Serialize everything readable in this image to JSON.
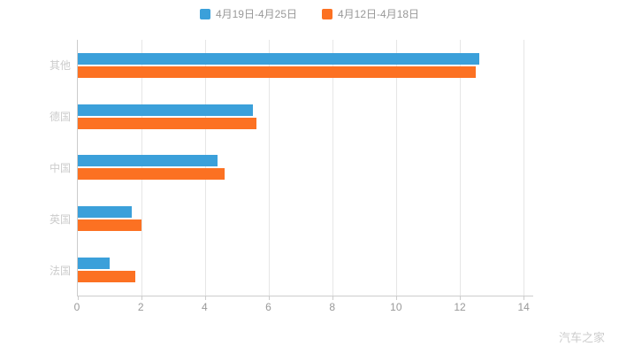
{
  "legend": {
    "series1_label": "4月19日-4月25日",
    "series2_label": "4月12日-4月18日"
  },
  "watermark": "汽车之家",
  "colors": {
    "series1": "#3ba0da",
    "series2": "#fc7122",
    "grid": "#e6e6e6",
    "axis": "#cccccc",
    "tick_text": "#999999",
    "category_text": "#cccccc",
    "watermark_text": "#cccccc",
    "background": "#ffffff"
  },
  "chart_data": {
    "type": "bar",
    "orientation": "horizontal",
    "title": "",
    "xlabel": "",
    "ylabel": "",
    "grid": true,
    "legend_position": "top",
    "categories": [
      "其他",
      "德国",
      "中国",
      "英国",
      "法国"
    ],
    "series": [
      {
        "name": "4月19日-4月25日",
        "color": "#3ba0da",
        "values": [
          12.6,
          5.5,
          4.4,
          1.7,
          1.0
        ]
      },
      {
        "name": "4月12日-4月18日",
        "color": "#fc7122",
        "values": [
          12.5,
          5.6,
          4.6,
          2.0,
          1.8
        ]
      }
    ],
    "x_ticks": [
      0,
      2,
      4,
      6,
      8,
      10,
      12,
      14
    ],
    "xlim": [
      0,
      14.3
    ]
  }
}
